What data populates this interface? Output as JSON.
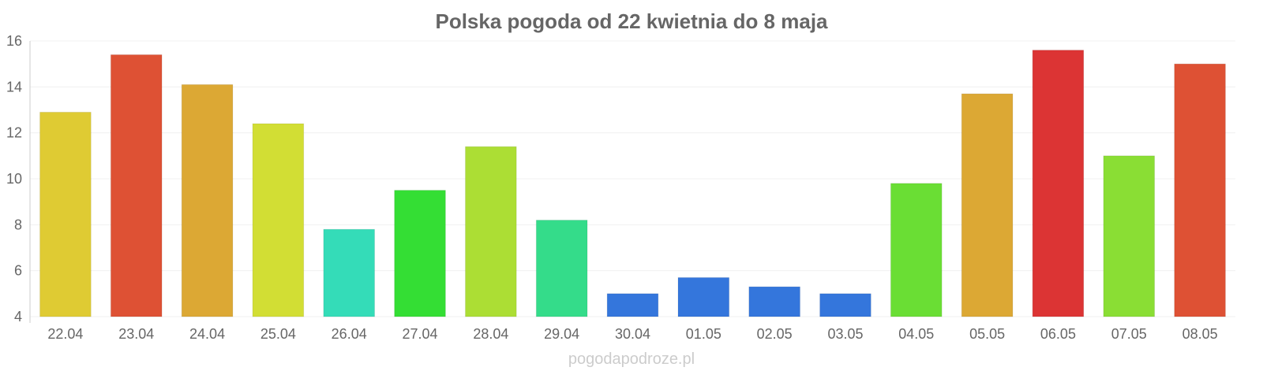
{
  "chart_data": {
    "type": "bar",
    "title": "Polska pogoda od 22 kwietnia do 8 maja",
    "xlabel": "",
    "ylabel": "",
    "ylim": [
      4,
      16
    ],
    "yticks": [
      4,
      6,
      8,
      10,
      12,
      14,
      16
    ],
    "grid": true,
    "legend": "none",
    "categories": [
      "22.04",
      "23.04",
      "24.04",
      "25.04",
      "26.04",
      "27.04",
      "28.04",
      "29.04",
      "30.04",
      "01.05",
      "02.05",
      "03.05",
      "04.05",
      "05.05",
      "06.05",
      "07.05",
      "08.05"
    ],
    "values": [
      12.9,
      15.4,
      14.1,
      12.4,
      7.8,
      9.5,
      11.4,
      8.2,
      5.0,
      5.7,
      5.3,
      5.0,
      9.8,
      13.7,
      15.6,
      11.0,
      15.0
    ],
    "colors": [
      "#dfcb33",
      "#de5134",
      "#dca834",
      "#d2de34",
      "#34dcb8",
      "#34de34",
      "#acde34",
      "#34dc8a",
      "#3476dc",
      "#3476dc",
      "#3476dc",
      "#3476dc",
      "#6ade34",
      "#dca834",
      "#dc3434",
      "#8ade34",
      "#de5134"
    ]
  },
  "watermark": "pogodapodroze.pl"
}
